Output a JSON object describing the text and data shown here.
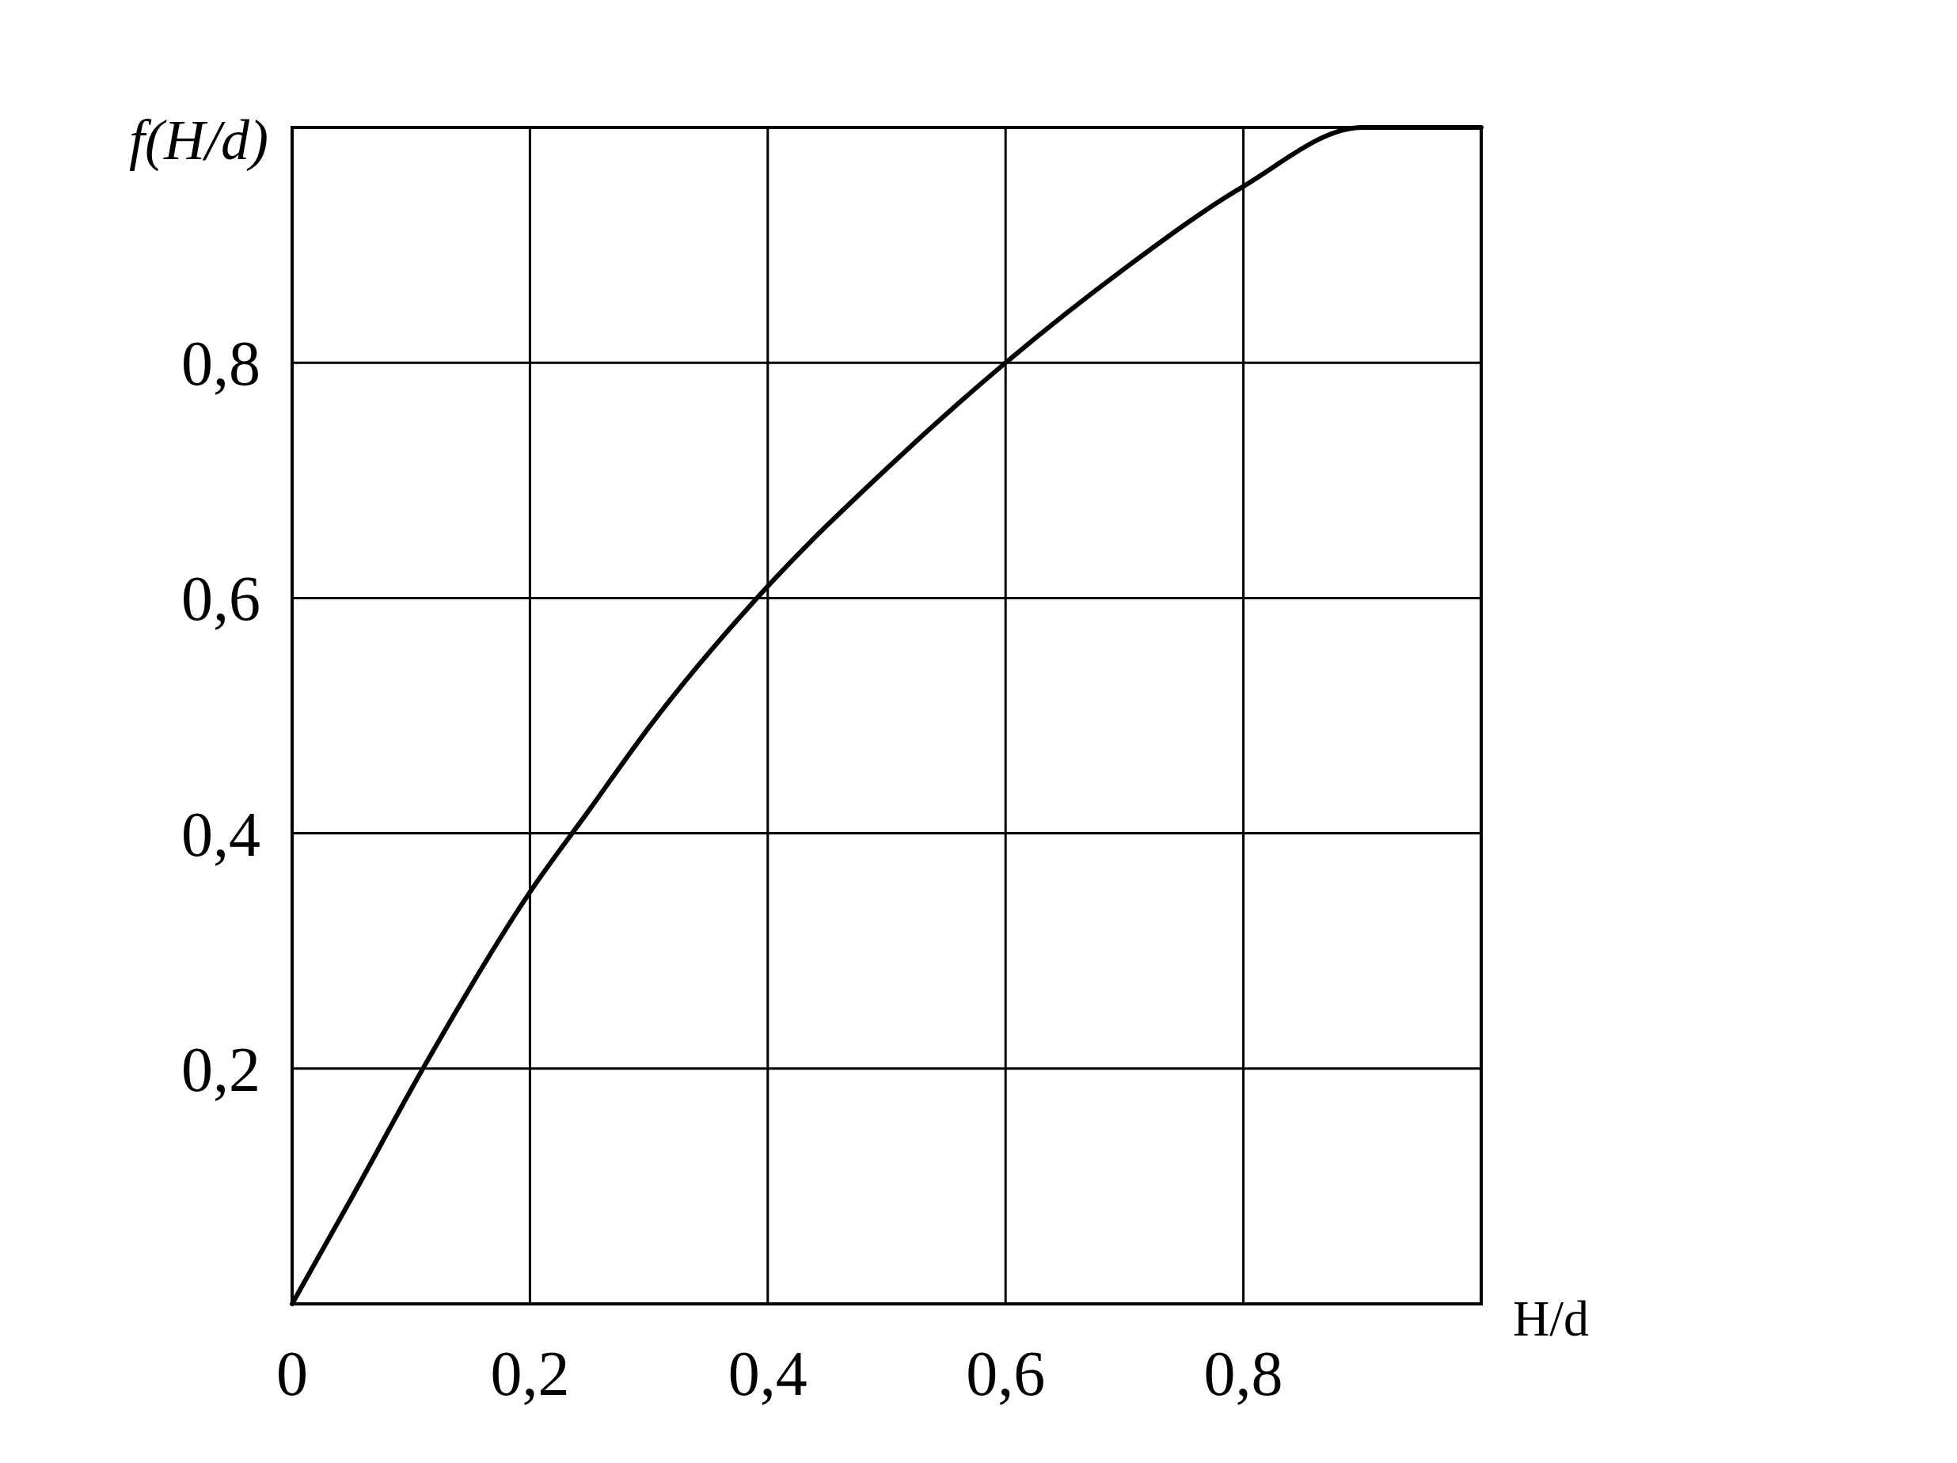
{
  "chart_data": {
    "type": "line",
    "xlabel": "H/d",
    "ylabel": "f(H/d)",
    "xlim": [
      0,
      1
    ],
    "ylim": [
      0,
      1
    ],
    "xticks": [
      0,
      {
        "value": 0.2,
        "label": "0,2"
      },
      {
        "value": 0.4,
        "label": "0,4"
      },
      {
        "value": 0.6,
        "label": "0,6"
      },
      {
        "value": 0.8,
        "label": "0,8"
      },
      {
        "value": 1,
        "label": null
      }
    ],
    "yticks": [
      {
        "value": 0,
        "label": null
      },
      {
        "value": 0.2,
        "label": "0,2"
      },
      {
        "value": 0.4,
        "label": "0,4"
      },
      {
        "value": 0.6,
        "label": "0,6"
      },
      {
        "value": 0.8,
        "label": "0,8"
      },
      {
        "value": 1,
        "label": null
      }
    ],
    "grid": true,
    "line_style": "solid",
    "series": [
      {
        "color": "#000000",
        "x": [
          0,
          0.05,
          0.11,
          0.2,
          0.25,
          0.3,
          0.4,
          0.5,
          0.6,
          0.7,
          0.8,
          0.9,
          1
        ],
        "values": [
          0,
          0.09,
          0.2,
          0.35,
          0.42,
          0.49,
          0.61,
          0.71,
          0.8,
          0.88,
          0.95,
          1,
          1
        ]
      }
    ]
  }
}
